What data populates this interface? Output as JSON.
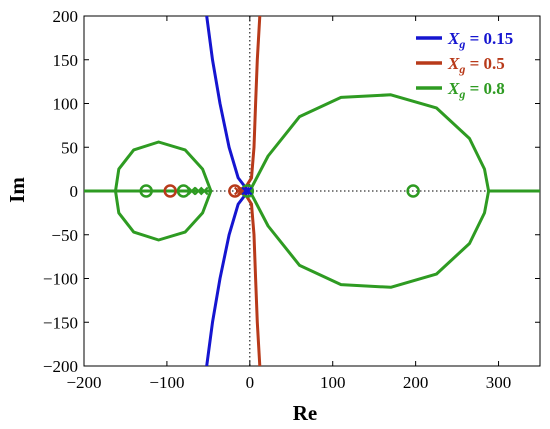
{
  "chart_data": {
    "type": "line",
    "title": "",
    "xlabel": "Re",
    "ylabel": "Im",
    "xlim": [
      -200,
      350
    ],
    "ylim": [
      -200,
      200
    ],
    "xticks": [
      -200,
      -100,
      0,
      100,
      200,
      300
    ],
    "yticks": [
      -200,
      -150,
      -100,
      -50,
      0,
      50,
      100,
      150,
      200
    ],
    "grid": false,
    "legend_position": "top-right",
    "series": [
      {
        "name": "X_g = 0.15",
        "legend_base": "X",
        "legend_sub": "g",
        "legend_value": " = 0.15",
        "color": "#1515d0",
        "branches": [
          [
            [
              -52,
              200
            ],
            [
              -45,
              150
            ],
            [
              -36,
              100
            ],
            [
              -25,
              50
            ],
            [
              -14,
              15
            ],
            [
              -2,
              0
            ],
            [
              -14,
              -15
            ],
            [
              -25,
              -50
            ],
            [
              -36,
              -100
            ],
            [
              -45,
              -150
            ],
            [
              -52,
              -200
            ]
          ]
        ],
        "poles": [
          [
            -2,
            0
          ],
          [
            -5,
            0
          ]
        ],
        "zeros": []
      },
      {
        "name": "X_g = 0.5",
        "legend_base": "X",
        "legend_sub": "g",
        "legend_value": " = 0.5",
        "color": "#b83a1a",
        "branches": [
          [
            [
              12,
              200
            ],
            [
              9,
              150
            ],
            [
              7,
              100
            ],
            [
              5,
              50
            ],
            [
              2,
              15
            ],
            [
              -8,
              0
            ],
            [
              2,
              -15
            ],
            [
              5,
              -50
            ],
            [
              7,
              -100
            ],
            [
              9,
              -150
            ],
            [
              12,
              -200
            ]
          ]
        ],
        "poles": [
          [
            -10,
            0
          ],
          [
            -14,
            0
          ]
        ],
        "zeros": [
          [
            -96,
            0
          ],
          [
            -18,
            0
          ]
        ]
      },
      {
        "name": "X_g = 0.8",
        "legend_base": "X",
        "legend_sub": "g",
        "legend_value": " = 0.8",
        "color": "#2e9b22",
        "branches": [
          [
            [
              -200,
              0
            ],
            [
              -162,
              0
            ]
          ],
          [
            [
              -162,
              0
            ],
            [
              -158,
              25
            ],
            [
              -140,
              47
            ],
            [
              -110,
              56
            ],
            [
              -78,
              47
            ],
            [
              -57,
              25
            ],
            [
              -47,
              0
            ],
            [
              -57,
              -25
            ],
            [
              -78,
              -47
            ],
            [
              -110,
              -56
            ],
            [
              -140,
              -47
            ],
            [
              -158,
              -25
            ],
            [
              -162,
              0
            ]
          ],
          [
            [
              0,
              0
            ],
            [
              22,
              40
            ],
            [
              60,
              85
            ],
            [
              110,
              107
            ],
            [
              170,
              110
            ],
            [
              225,
              95
            ],
            [
              265,
              60
            ],
            [
              283,
              25
            ],
            [
              288,
              0
            ],
            [
              283,
              -25
            ],
            [
              265,
              -60
            ],
            [
              225,
              -95
            ],
            [
              170,
              -110
            ],
            [
              110,
              -107
            ],
            [
              60,
              -85
            ],
            [
              22,
              -40
            ],
            [
              0,
              0
            ]
          ],
          [
            [
              288,
              0
            ],
            [
              350,
              0
            ]
          ],
          [
            [
              -162,
              0
            ],
            [
              -47,
              0
            ]
          ]
        ],
        "poles": [
          [
            -70,
            0
          ],
          [
            -62,
            0
          ],
          [
            -55,
            0
          ]
        ],
        "zeros": [
          [
            -125,
            0
          ],
          [
            -80,
            0
          ],
          [
            197,
            0
          ],
          [
            -3,
            0
          ]
        ]
      }
    ]
  }
}
